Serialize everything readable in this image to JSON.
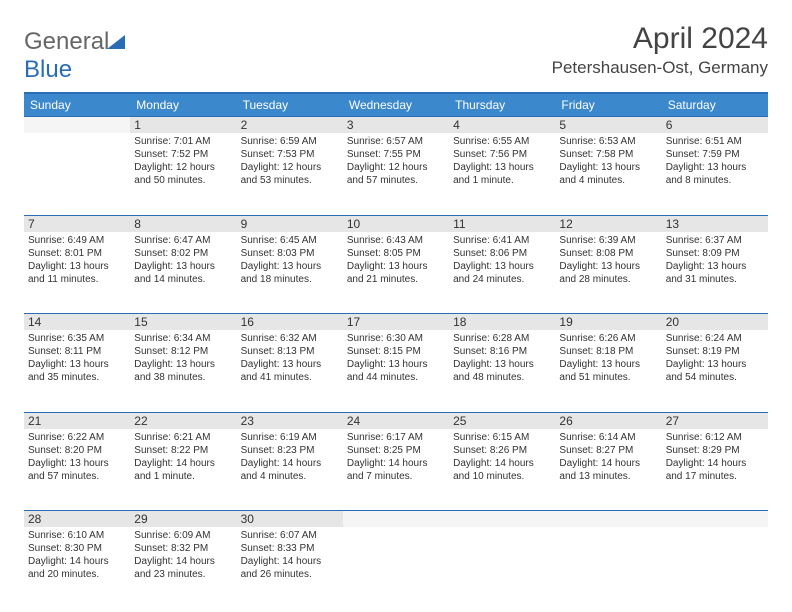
{
  "logo": {
    "text1": "General",
    "text2": "Blue"
  },
  "title": "April 2024",
  "location": "Petershausen-Ost, Germany",
  "colors": {
    "header_bg": "#3b88cc",
    "border": "#2a6db5",
    "daynum_bg": "#e6e6e6",
    "text": "#333333"
  },
  "weekdays": [
    "Sunday",
    "Monday",
    "Tuesday",
    "Wednesday",
    "Thursday",
    "Friday",
    "Saturday"
  ],
  "weeks": [
    {
      "nums": [
        "",
        "1",
        "2",
        "3",
        "4",
        "5",
        "6"
      ],
      "cells": [
        null,
        {
          "sunrise": "Sunrise: 7:01 AM",
          "sunset": "Sunset: 7:52 PM",
          "day1": "Daylight: 12 hours",
          "day2": "and 50 minutes."
        },
        {
          "sunrise": "Sunrise: 6:59 AM",
          "sunset": "Sunset: 7:53 PM",
          "day1": "Daylight: 12 hours",
          "day2": "and 53 minutes."
        },
        {
          "sunrise": "Sunrise: 6:57 AM",
          "sunset": "Sunset: 7:55 PM",
          "day1": "Daylight: 12 hours",
          "day2": "and 57 minutes."
        },
        {
          "sunrise": "Sunrise: 6:55 AM",
          "sunset": "Sunset: 7:56 PM",
          "day1": "Daylight: 13 hours",
          "day2": "and 1 minute."
        },
        {
          "sunrise": "Sunrise: 6:53 AM",
          "sunset": "Sunset: 7:58 PM",
          "day1": "Daylight: 13 hours",
          "day2": "and 4 minutes."
        },
        {
          "sunrise": "Sunrise: 6:51 AM",
          "sunset": "Sunset: 7:59 PM",
          "day1": "Daylight: 13 hours",
          "day2": "and 8 minutes."
        }
      ]
    },
    {
      "nums": [
        "7",
        "8",
        "9",
        "10",
        "11",
        "12",
        "13"
      ],
      "cells": [
        {
          "sunrise": "Sunrise: 6:49 AM",
          "sunset": "Sunset: 8:01 PM",
          "day1": "Daylight: 13 hours",
          "day2": "and 11 minutes."
        },
        {
          "sunrise": "Sunrise: 6:47 AM",
          "sunset": "Sunset: 8:02 PM",
          "day1": "Daylight: 13 hours",
          "day2": "and 14 minutes."
        },
        {
          "sunrise": "Sunrise: 6:45 AM",
          "sunset": "Sunset: 8:03 PM",
          "day1": "Daylight: 13 hours",
          "day2": "and 18 minutes."
        },
        {
          "sunrise": "Sunrise: 6:43 AM",
          "sunset": "Sunset: 8:05 PM",
          "day1": "Daylight: 13 hours",
          "day2": "and 21 minutes."
        },
        {
          "sunrise": "Sunrise: 6:41 AM",
          "sunset": "Sunset: 8:06 PM",
          "day1": "Daylight: 13 hours",
          "day2": "and 24 minutes."
        },
        {
          "sunrise": "Sunrise: 6:39 AM",
          "sunset": "Sunset: 8:08 PM",
          "day1": "Daylight: 13 hours",
          "day2": "and 28 minutes."
        },
        {
          "sunrise": "Sunrise: 6:37 AM",
          "sunset": "Sunset: 8:09 PM",
          "day1": "Daylight: 13 hours",
          "day2": "and 31 minutes."
        }
      ]
    },
    {
      "nums": [
        "14",
        "15",
        "16",
        "17",
        "18",
        "19",
        "20"
      ],
      "cells": [
        {
          "sunrise": "Sunrise: 6:35 AM",
          "sunset": "Sunset: 8:11 PM",
          "day1": "Daylight: 13 hours",
          "day2": "and 35 minutes."
        },
        {
          "sunrise": "Sunrise: 6:34 AM",
          "sunset": "Sunset: 8:12 PM",
          "day1": "Daylight: 13 hours",
          "day2": "and 38 minutes."
        },
        {
          "sunrise": "Sunrise: 6:32 AM",
          "sunset": "Sunset: 8:13 PM",
          "day1": "Daylight: 13 hours",
          "day2": "and 41 minutes."
        },
        {
          "sunrise": "Sunrise: 6:30 AM",
          "sunset": "Sunset: 8:15 PM",
          "day1": "Daylight: 13 hours",
          "day2": "and 44 minutes."
        },
        {
          "sunrise": "Sunrise: 6:28 AM",
          "sunset": "Sunset: 8:16 PM",
          "day1": "Daylight: 13 hours",
          "day2": "and 48 minutes."
        },
        {
          "sunrise": "Sunrise: 6:26 AM",
          "sunset": "Sunset: 8:18 PM",
          "day1": "Daylight: 13 hours",
          "day2": "and 51 minutes."
        },
        {
          "sunrise": "Sunrise: 6:24 AM",
          "sunset": "Sunset: 8:19 PM",
          "day1": "Daylight: 13 hours",
          "day2": "and 54 minutes."
        }
      ]
    },
    {
      "nums": [
        "21",
        "22",
        "23",
        "24",
        "25",
        "26",
        "27"
      ],
      "cells": [
        {
          "sunrise": "Sunrise: 6:22 AM",
          "sunset": "Sunset: 8:20 PM",
          "day1": "Daylight: 13 hours",
          "day2": "and 57 minutes."
        },
        {
          "sunrise": "Sunrise: 6:21 AM",
          "sunset": "Sunset: 8:22 PM",
          "day1": "Daylight: 14 hours",
          "day2": "and 1 minute."
        },
        {
          "sunrise": "Sunrise: 6:19 AM",
          "sunset": "Sunset: 8:23 PM",
          "day1": "Daylight: 14 hours",
          "day2": "and 4 minutes."
        },
        {
          "sunrise": "Sunrise: 6:17 AM",
          "sunset": "Sunset: 8:25 PM",
          "day1": "Daylight: 14 hours",
          "day2": "and 7 minutes."
        },
        {
          "sunrise": "Sunrise: 6:15 AM",
          "sunset": "Sunset: 8:26 PM",
          "day1": "Daylight: 14 hours",
          "day2": "and 10 minutes."
        },
        {
          "sunrise": "Sunrise: 6:14 AM",
          "sunset": "Sunset: 8:27 PM",
          "day1": "Daylight: 14 hours",
          "day2": "and 13 minutes."
        },
        {
          "sunrise": "Sunrise: 6:12 AM",
          "sunset": "Sunset: 8:29 PM",
          "day1": "Daylight: 14 hours",
          "day2": "and 17 minutes."
        }
      ]
    },
    {
      "nums": [
        "28",
        "29",
        "30",
        "",
        "",
        "",
        ""
      ],
      "cells": [
        {
          "sunrise": "Sunrise: 6:10 AM",
          "sunset": "Sunset: 8:30 PM",
          "day1": "Daylight: 14 hours",
          "day2": "and 20 minutes."
        },
        {
          "sunrise": "Sunrise: 6:09 AM",
          "sunset": "Sunset: 8:32 PM",
          "day1": "Daylight: 14 hours",
          "day2": "and 23 minutes."
        },
        {
          "sunrise": "Sunrise: 6:07 AM",
          "sunset": "Sunset: 8:33 PM",
          "day1": "Daylight: 14 hours",
          "day2": "and 26 minutes."
        },
        null,
        null,
        null,
        null
      ]
    }
  ]
}
